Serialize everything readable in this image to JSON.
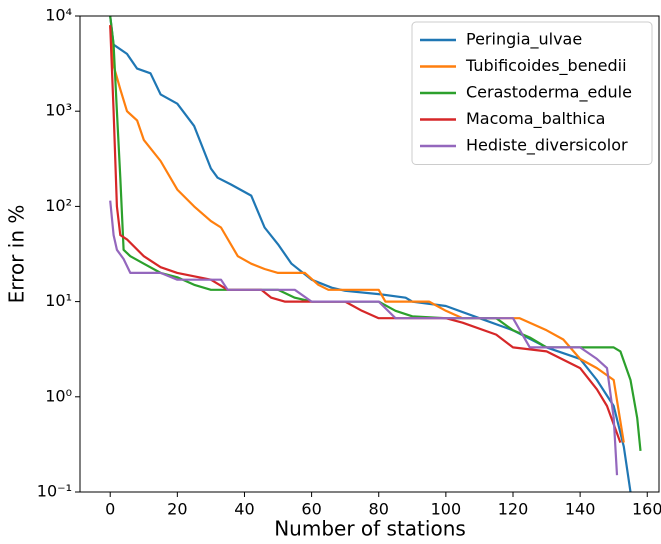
{
  "chart_data": {
    "type": "line",
    "xlabel": "Number of stations",
    "ylabel": "Error in %",
    "xlim": [
      -9,
      163.5
    ],
    "ylim": [
      0.1,
      10000
    ],
    "yscale": "log",
    "xticks": [
      0,
      20,
      40,
      60,
      80,
      100,
      120,
      140,
      160
    ],
    "yticks": [
      {
        "value": 0.1,
        "label": "10⁻¹"
      },
      {
        "value": 1,
        "label": "10⁰"
      },
      {
        "value": 10,
        "label": "10¹"
      },
      {
        "value": 100,
        "label": "10²"
      },
      {
        "value": 1000,
        "label": "10³"
      },
      {
        "value": 10000,
        "label": "10⁴"
      }
    ],
    "legend": "upper right",
    "series": [
      {
        "name": "Peringia_ulvae",
        "color": "#1f77b4",
        "x": [
          0,
          1,
          5,
          8,
          12,
          15,
          20,
          25,
          30,
          32,
          36,
          42,
          46,
          50,
          54,
          60,
          66,
          70,
          80,
          88,
          90,
          100,
          110,
          120,
          130,
          140,
          145,
          150,
          153,
          155
        ],
        "values": [
          10000,
          5000,
          4000,
          2800,
          2500,
          1500,
          1200,
          700,
          250,
          200,
          170,
          130,
          60,
          40,
          25,
          17,
          14,
          13,
          12,
          11,
          10,
          9,
          6.7,
          5,
          3.3,
          2.5,
          1.5,
          0.8,
          0.3,
          0.1
        ]
      },
      {
        "name": "Tubificoides_benedii",
        "color": "#ff7f0e",
        "x": [
          0,
          1,
          3,
          5,
          8,
          10,
          15,
          20,
          25,
          30,
          33,
          38,
          42,
          46,
          50,
          58,
          62,
          65,
          80,
          82,
          95,
          100,
          105,
          122,
          130,
          135,
          140,
          145,
          150,
          153
        ],
        "values": [
          8000,
          3000,
          1700,
          1000,
          800,
          500,
          300,
          150,
          100,
          70,
          60,
          30,
          25,
          22,
          20,
          20,
          15,
          13.3,
          13.3,
          10,
          10,
          8,
          6.7,
          6.7,
          5,
          4,
          2.5,
          2,
          1.5,
          0.33
        ]
      },
      {
        "name": "Cerastoderma_edule",
        "color": "#2ca02c",
        "x": [
          0,
          1,
          2,
          3,
          4,
          6,
          10,
          15,
          20,
          25,
          30,
          50,
          55,
          60,
          80,
          85,
          90,
          100,
          115,
          120,
          125,
          130,
          150,
          152,
          155,
          157,
          158
        ],
        "values": [
          10000,
          5000,
          1000,
          200,
          35,
          30,
          25,
          20,
          18,
          15,
          13.3,
          13.3,
          11,
          10,
          10,
          8,
          7,
          6.7,
          6.7,
          5,
          4.2,
          3.3,
          3.3,
          3,
          1.5,
          0.6,
          0.27
        ]
      },
      {
        "name": "Macoma_balthica",
        "color": "#d62728",
        "x": [
          0,
          1,
          2,
          3,
          5,
          10,
          15,
          20,
          30,
          35,
          45,
          48,
          52,
          70,
          75,
          80,
          100,
          105,
          115,
          120,
          130,
          140,
          145,
          148,
          152
        ],
        "values": [
          8000,
          1000,
          100,
          50,
          45,
          30,
          23,
          20,
          17,
          13.3,
          13.3,
          11,
          10,
          10,
          8,
          6.7,
          6.7,
          6,
          4.5,
          3.3,
          3,
          2,
          1.2,
          0.8,
          0.33
        ]
      },
      {
        "name": "Hediste_diversicolor",
        "color": "#9467bd",
        "x": [
          0,
          1,
          2,
          4,
          6,
          15,
          20,
          33,
          35,
          55,
          60,
          80,
          85,
          120,
          125,
          140,
          145,
          148,
          150,
          151
        ],
        "values": [
          115,
          50,
          35,
          28,
          20,
          20,
          17,
          17,
          13.3,
          13.3,
          10,
          10,
          6.7,
          6.7,
          3.3,
          3.3,
          2.5,
          2,
          0.6,
          0.15
        ]
      }
    ]
  }
}
